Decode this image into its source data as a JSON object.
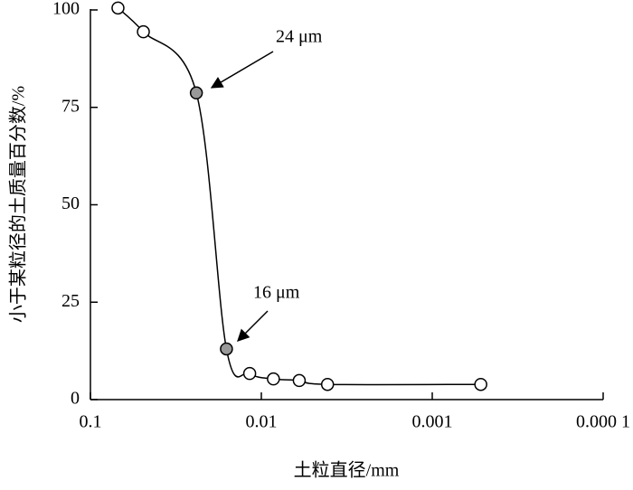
{
  "chart_data": {
    "type": "line",
    "x_label": "土粒直径/mm",
    "y_label": "小于某粒径的土质量百分数/%",
    "x_scale": "log",
    "xlim": [
      0.1,
      0.0001
    ],
    "xticks": [
      0.1,
      0.01,
      0.001,
      {
        "value": 0.0001,
        "label": "0.000 1"
      }
    ],
    "ylim": [
      0,
      100
    ],
    "yticks": [
      0,
      25,
      50,
      75,
      100
    ],
    "grid": false,
    "annotations": [
      "24 μm",
      "16 μm"
    ],
    "series": [
      {
        "color": "#000000",
        "x": [
          0.069,
          0.049,
          0.024,
          0.016,
          0.0117,
          0.0085,
          0.006,
          0.0041,
          0.00052
        ],
        "values": [
          100.5,
          94.4,
          78.7,
          13,
          6.7,
          5.3,
          4.9,
          3.9,
          3.9
        ],
        "marker_colors": [
          "#ffffff",
          "#ffffff",
          "#999999",
          "#999999",
          "#ffffff",
          "#ffffff",
          "#ffffff",
          "#ffffff",
          "#ffffff"
        ]
      }
    ]
  }
}
